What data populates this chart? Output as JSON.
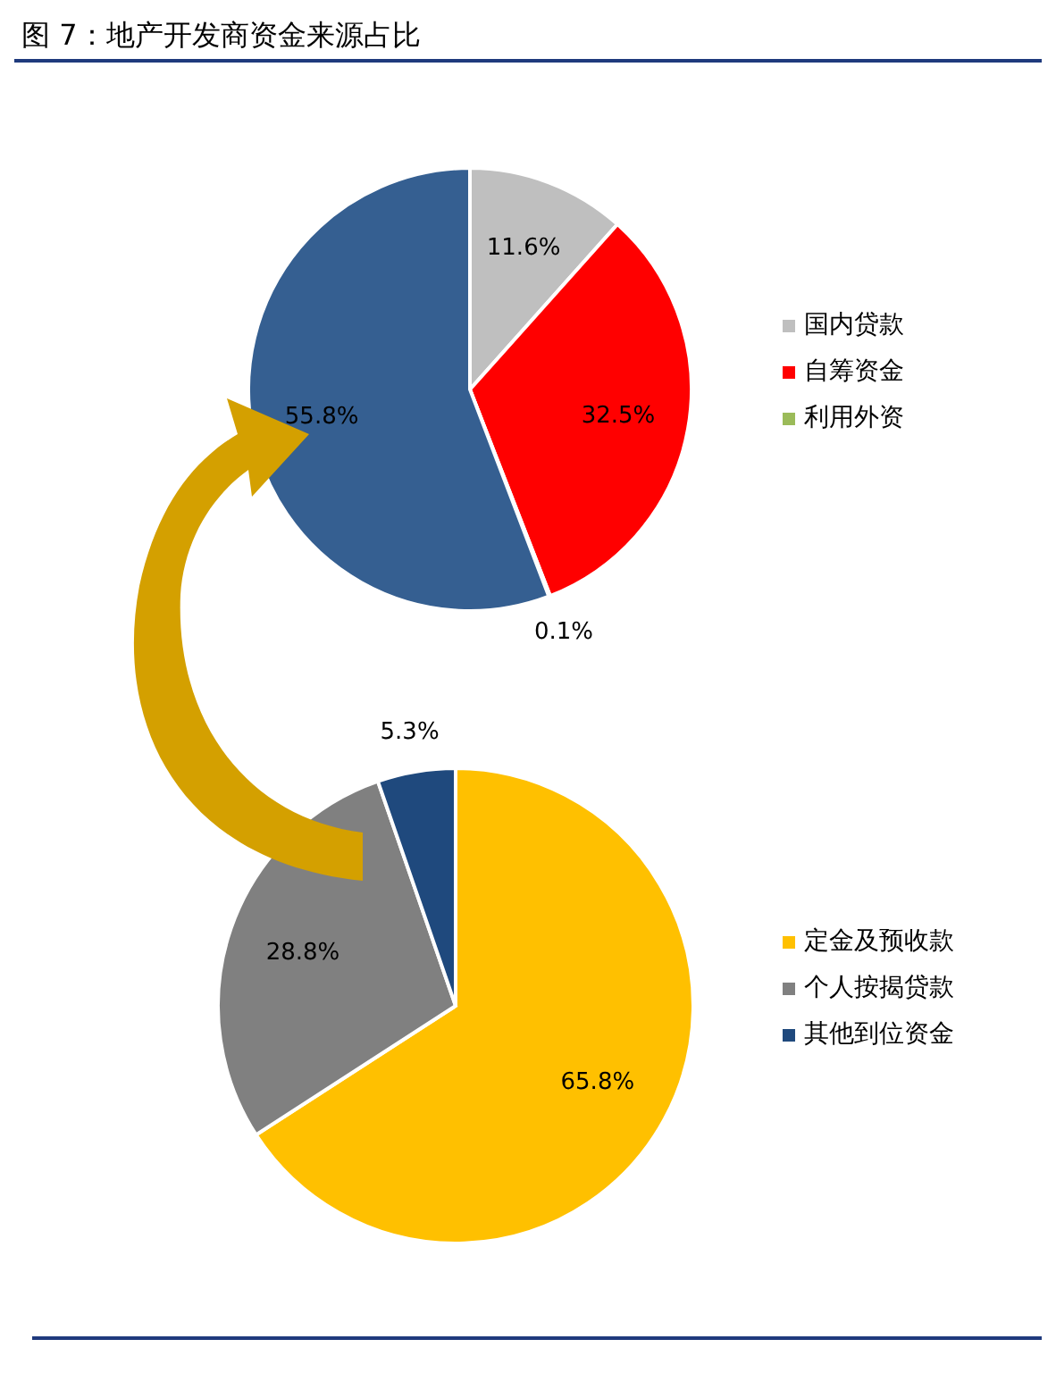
{
  "chart_data": [
    {
      "type": "pie",
      "title": "图 7：地产开发商资金来源占比",
      "categories": [
        "国内贷款",
        "自筹资金",
        "利用外资",
        null
      ],
      "values": [
        11.6,
        32.5,
        0.1,
        55.8
      ],
      "colors": [
        "#bfbfbf",
        "#ff0000",
        "#9bbb59",
        "#355f91"
      ],
      "value_labels": [
        "11.6%",
        "32.5%",
        "0.1%",
        "55.8%"
      ],
      "legend": "right"
    },
    {
      "type": "pie",
      "categories": [
        "定金及预收款",
        "个人按揭贷款",
        "其他到位资金"
      ],
      "values": [
        65.8,
        28.8,
        5.3
      ],
      "colors": [
        "#ffc000",
        "#808080",
        "#1f497d"
      ],
      "value_labels": [
        "65.8%",
        "28.8%",
        "5.3%"
      ],
      "legend": "right"
    }
  ]
}
